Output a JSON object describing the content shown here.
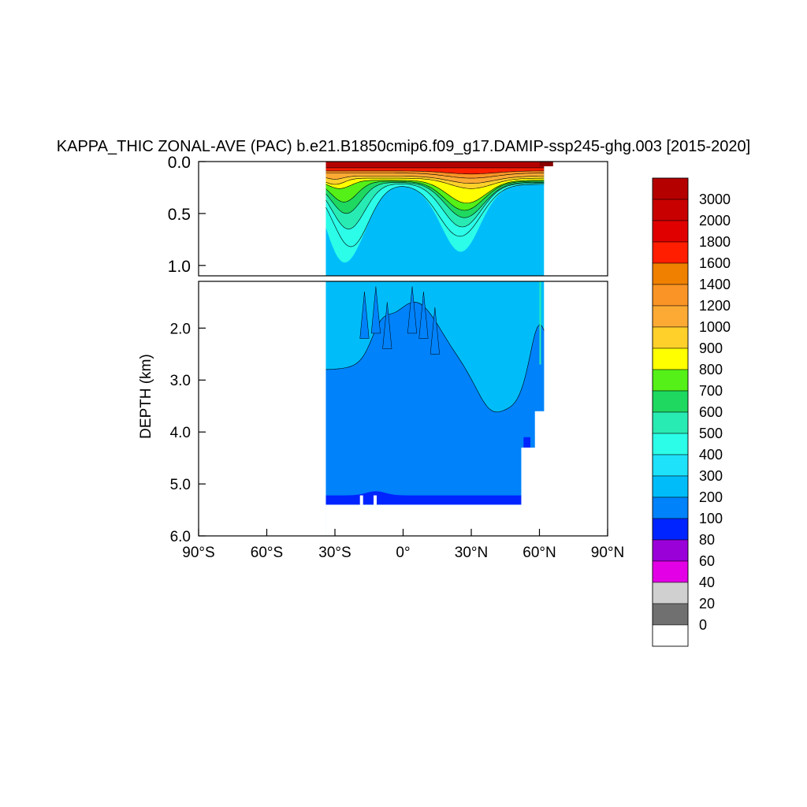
{
  "chart_data": {
    "type": "heatmap",
    "title": "KAPPA_THIC ZONAL-AVE (PAC) b.e21.B1850cmip6.f09_g17.DAMIP-ssp245-ghg.003 [2015-2020]",
    "ylabel": "DEPTH (km)",
    "xlabel": "",
    "x_ticks": [
      {
        "value": -90,
        "label": "90°S"
      },
      {
        "value": -60,
        "label": "60°S"
      },
      {
        "value": -30,
        "label": "30°S"
      },
      {
        "value": 0,
        "label": "0°"
      },
      {
        "value": 30,
        "label": "30°N"
      },
      {
        "value": 60,
        "label": "60°N"
      },
      {
        "value": 90,
        "label": "90°N"
      }
    ],
    "upper_panel": {
      "ylim": [
        0.0,
        1.1
      ],
      "y_ticks": [
        {
          "value": 0.0,
          "label": "0.0"
        },
        {
          "value": 0.5,
          "label": "0.5"
        },
        {
          "value": 1.0,
          "label": "1.0"
        }
      ]
    },
    "lower_panel": {
      "ylim": [
        1.1,
        6.0
      ],
      "y_ticks": [
        {
          "value": 2.0,
          "label": "2.0"
        },
        {
          "value": 3.0,
          "label": "3.0"
        },
        {
          "value": 4.0,
          "label": "4.0"
        },
        {
          "value": 5.0,
          "label": "5.0"
        },
        {
          "value": 6.0,
          "label": "6.0"
        }
      ]
    },
    "data_extent": {
      "lat_min": -34,
      "lat_max": 62,
      "max_depth_km": 5.4
    },
    "colorbar": {
      "levels": [
        "3000",
        "2000",
        "1800",
        "1600",
        "1400",
        "1200",
        "1000",
        "900",
        "800",
        "700",
        "600",
        "500",
        "400",
        "300",
        "200",
        "100",
        "80",
        "60",
        "40",
        "20",
        "0"
      ],
      "colors": [
        "#b50000",
        "#c80000",
        "#e00000",
        "#ff1e00",
        "#ef8000",
        "#fb9426",
        "#fdaa34",
        "#ffd02a",
        "#ffff00",
        "#54f017",
        "#1ed860",
        "#28ebb4",
        "#2bfde8",
        "#1ee1fa",
        "#00bdfa",
        "#0082fa",
        "#0024ff",
        "#9a00d8",
        "#e400e6",
        "#d0d0d0",
        "#707070",
        "#ffffff"
      ]
    }
  }
}
